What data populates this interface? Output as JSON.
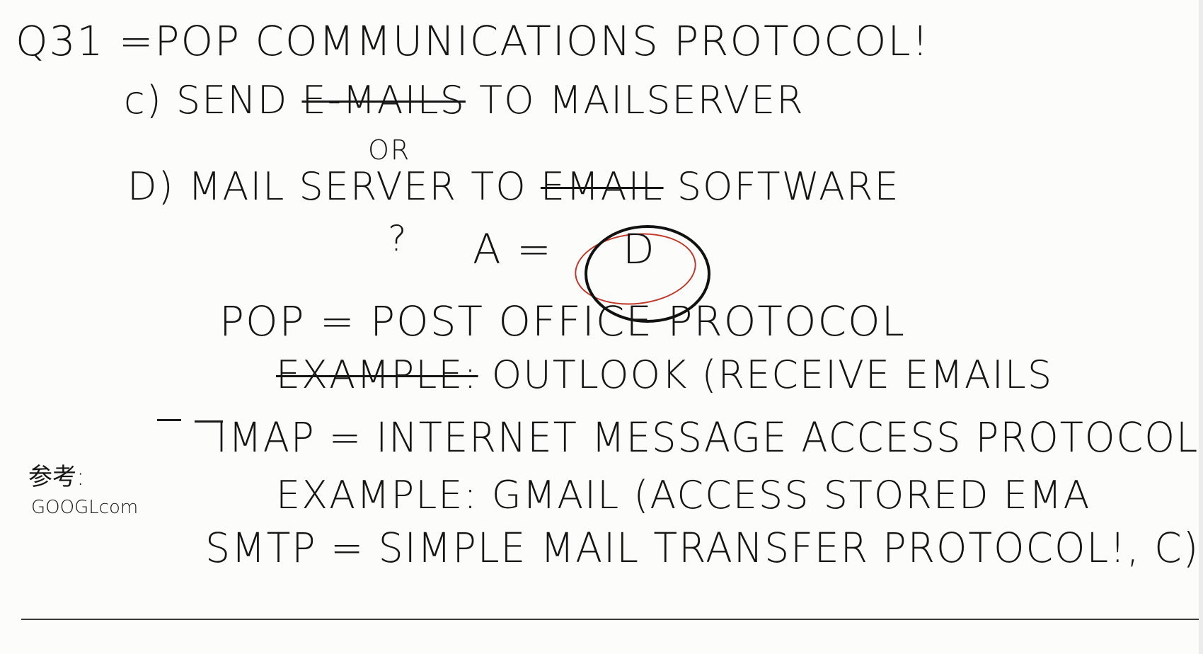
{
  "notes": {
    "line1": "Q31 =POP COMMUNICATIONS PROTOCOL!",
    "line2_prefix": "c) SEND",
    "line2_strike": "E-MAILS",
    "line2_suffix": "TO MAILSERVER",
    "line3_or": "OR",
    "line4_prefix": "D) MAIL SERVER TO",
    "line4_strike": "EMAIL",
    "line4_suffix": "SOFTWARE",
    "question_mark": "?",
    "answer_prefix": "A =",
    "answer_letter": "D",
    "pop_line": "POP = POST OFFICE PROTOCOL",
    "pop_example_label": "EXAMPLE:",
    "pop_example_text": "OUTLOOK (RECEIVE EMAILS",
    "imap_line": "IMAP = INTERNET MESSAGE ACCESS PROTOCOL",
    "imap_example_label": "EXAMPLE:",
    "imap_example_text": "GMAIL (ACCESS STORED EMA",
    "smtp_line": "SMTP = SIMPLE MAIL TRANSFER PROTOCOL!, C)",
    "side_note_cjk": "参考:",
    "side_note_source": "GOOGLcom"
  },
  "colors": {
    "ink": "#141414",
    "red_pen": "#c0392b",
    "paper": "#fcfcfa"
  }
}
